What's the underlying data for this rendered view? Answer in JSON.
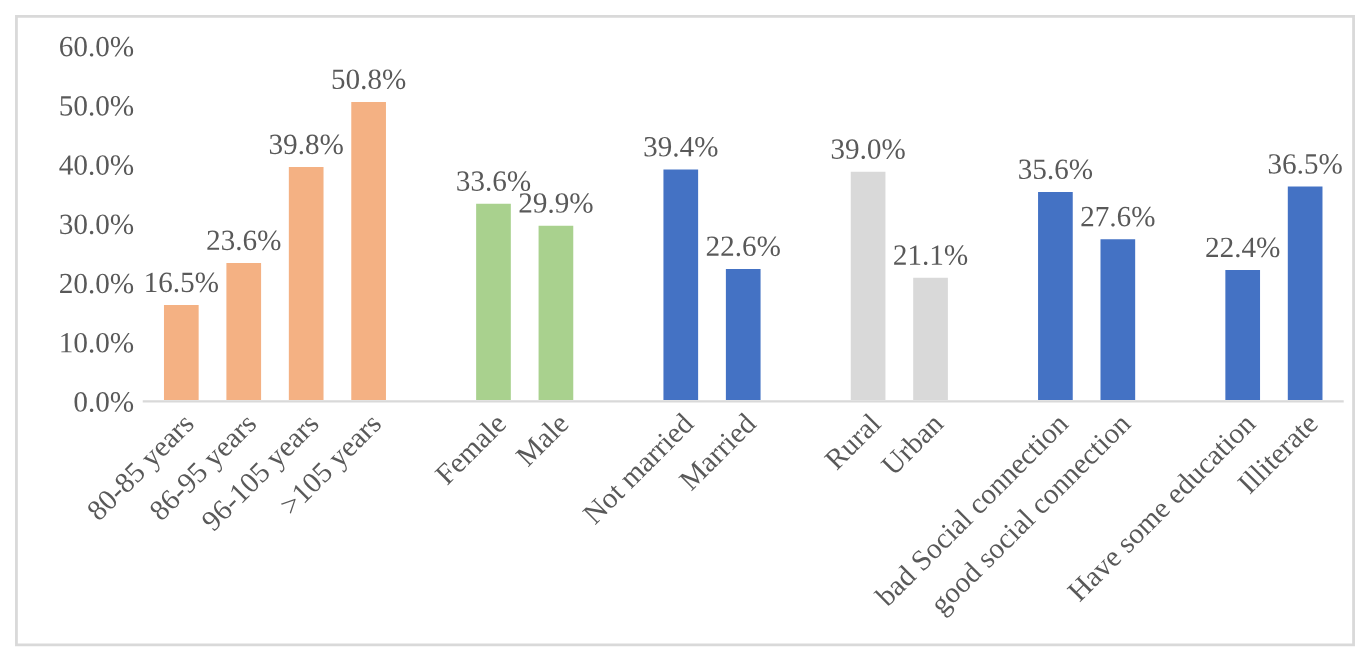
{
  "chart_data": {
    "type": "bar",
    "categories": [
      "80-85 years",
      "86-95 years",
      "96-105 years",
      ">105 years",
      null,
      "Female",
      "Male",
      null,
      "Not married",
      "Married",
      null,
      "Rural",
      "Urban",
      null,
      "bad Social connection",
      "good social connection",
      null,
      "Have some education",
      "Illiterate"
    ],
    "values": [
      16.5,
      23.6,
      39.8,
      50.8,
      null,
      33.6,
      29.9,
      null,
      39.4,
      22.6,
      null,
      39.0,
      21.1,
      null,
      35.6,
      27.6,
      null,
      22.4,
      36.5
    ],
    "value_labels": [
      "16.5%",
      "23.6%",
      "39.8%",
      "50.8%",
      null,
      "33.6%",
      "29.9%",
      null,
      "39.4%",
      "22.6%",
      null,
      "39.0%",
      "21.1%",
      null,
      "35.6%",
      "27.6%",
      null,
      "22.4%",
      "36.5%"
    ],
    "colors": [
      "#f4b183",
      "#f4b183",
      "#f4b183",
      "#f4b183",
      null,
      "#a9d18e",
      "#a9d18e",
      null,
      "#4472c4",
      "#4472c4",
      null,
      "#d9d9d9",
      "#d9d9d9",
      null,
      "#4472c4",
      "#4472c4",
      null,
      "#4472c4",
      "#4472c4"
    ],
    "ylim": [
      0,
      60
    ],
    "yticks": [
      {
        "value": 0,
        "label": "0.0%"
      },
      {
        "value": 10,
        "label": "10.0%"
      },
      {
        "value": 20,
        "label": "20.0%"
      },
      {
        "value": 30,
        "label": "30.0%"
      },
      {
        "value": 40,
        "label": "40.0%"
      },
      {
        "value": 50,
        "label": "50.0%"
      },
      {
        "value": 60,
        "label": "60.0%"
      }
    ],
    "grid": false
  }
}
